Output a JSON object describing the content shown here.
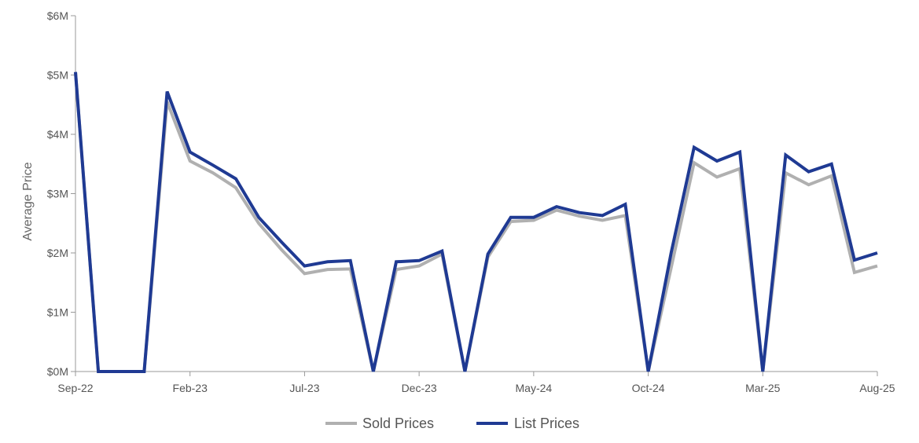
{
  "chart_data": {
    "type": "line",
    "title": "",
    "xlabel": "",
    "ylabel": "Average Price",
    "ylim": [
      0,
      6
    ],
    "yticks": [
      {
        "value": 0,
        "label": "$0M"
      },
      {
        "value": 1,
        "label": "$1M"
      },
      {
        "value": 2,
        "label": "$2M"
      },
      {
        "value": 3,
        "label": "$3M"
      },
      {
        "value": 4,
        "label": "$4M"
      },
      {
        "value": 5,
        "label": "$5M"
      },
      {
        "value": 6,
        "label": "$6M"
      }
    ],
    "x": [
      "Sep-22",
      "Oct-22",
      "Nov-22",
      "Dec-22",
      "Jan-23",
      "Feb-23",
      "Mar-23",
      "Apr-23",
      "May-23",
      "Jun-23",
      "Jul-23",
      "Aug-23",
      "Sep-23",
      "Oct-23",
      "Nov-23",
      "Dec-23",
      "Jan-24",
      "Feb-24",
      "Mar-24",
      "Apr-24",
      "May-24",
      "Jun-24",
      "Jul-24",
      "Aug-24",
      "Sep-24",
      "Oct-24",
      "Nov-24",
      "Dec-24",
      "Jan-25",
      "Feb-25",
      "Mar-25",
      "Apr-25",
      "May-25",
      "Jun-25",
      "Jul-25",
      "Aug-25"
    ],
    "xtick_labels": [
      {
        "index": 0,
        "label": "Sep-22"
      },
      {
        "index": 5,
        "label": "Feb-23"
      },
      {
        "index": 10,
        "label": "Jul-23"
      },
      {
        "index": 15,
        "label": "Dec-23"
      },
      {
        "index": 20,
        "label": "May-24"
      },
      {
        "index": 25,
        "label": "Oct-24"
      },
      {
        "index": 30,
        "label": "Mar-25"
      },
      {
        "index": 35,
        "label": "Aug-25"
      }
    ],
    "series": [
      {
        "name": "Sold Prices",
        "color": "#b0b0b0",
        "values": [
          5.05,
          0,
          0,
          0,
          4.55,
          3.55,
          3.35,
          3.1,
          2.5,
          2.05,
          1.65,
          1.72,
          1.73,
          0,
          1.72,
          1.78,
          1.98,
          0,
          1.93,
          2.53,
          2.55,
          2.72,
          2.62,
          2.55,
          2.63,
          0,
          1.75,
          3.52,
          3.28,
          3.42,
          0,
          3.35,
          3.15,
          3.3,
          1.67,
          1.78
        ]
      },
      {
        "name": "List Prices",
        "color": "#1f3a93",
        "values": [
          5.05,
          0,
          0,
          0,
          4.72,
          3.7,
          3.48,
          3.25,
          2.6,
          2.18,
          1.78,
          1.85,
          1.87,
          0,
          1.85,
          1.87,
          2.03,
          0,
          1.98,
          2.6,
          2.6,
          2.78,
          2.68,
          2.63,
          2.82,
          0,
          2.0,
          3.78,
          3.55,
          3.7,
          0,
          3.65,
          3.37,
          3.5,
          1.88,
          2.0
        ]
      }
    ],
    "grid": false,
    "legend_position": "bottom-center"
  }
}
